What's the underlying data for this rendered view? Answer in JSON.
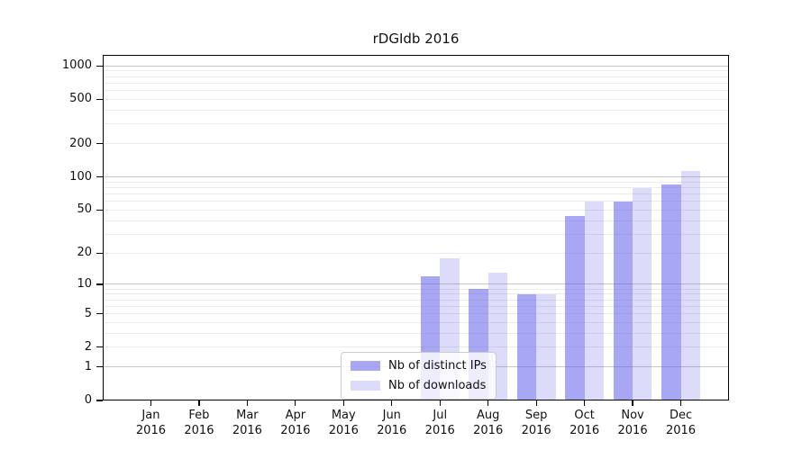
{
  "chart_data": {
    "type": "bar",
    "title": "rDGIdb 2016",
    "xlabel": "",
    "ylabel": "",
    "x_ticks": [
      {
        "month": "Jan",
        "year": "2016"
      },
      {
        "month": "Feb",
        "year": "2016"
      },
      {
        "month": "Mar",
        "year": "2016"
      },
      {
        "month": "Apr",
        "year": "2016"
      },
      {
        "month": "May",
        "year": "2016"
      },
      {
        "month": "Jun",
        "year": "2016"
      },
      {
        "month": "Jul",
        "year": "2016"
      },
      {
        "month": "Aug",
        "year": "2016"
      },
      {
        "month": "Sep",
        "year": "2016"
      },
      {
        "month": "Oct",
        "year": "2016"
      },
      {
        "month": "Nov",
        "year": "2016"
      },
      {
        "month": "Dec",
        "year": "2016"
      }
    ],
    "series": [
      {
        "name": "Nb of distinct IPs",
        "css_color": "rgba(88,88,232,0.53)",
        "color_hex": "#a6a6f3",
        "values": [
          0,
          0,
          0,
          0,
          0,
          0,
          12,
          9,
          8,
          44,
          60,
          85
        ]
      },
      {
        "name": "Nb of downloads",
        "css_color": "rgba(88,88,232,0.21)",
        "color_hex": "#dcdcfa",
        "values": [
          0,
          0,
          0,
          0,
          0,
          0,
          18,
          13,
          8,
          60,
          80,
          113
        ]
      }
    ],
    "y_axis": {
      "scale": "log1p",
      "ticks": [
        0,
        1,
        2,
        5,
        10,
        20,
        50,
        100,
        200,
        500,
        1000
      ],
      "max": 1255
    },
    "grid": {
      "major": [
        1,
        10,
        100,
        1000
      ],
      "minor": [
        2,
        3,
        4,
        5,
        6,
        7,
        8,
        9,
        20,
        30,
        40,
        50,
        60,
        70,
        80,
        90,
        200,
        300,
        400,
        500,
        600,
        700,
        800,
        900
      ],
      "major_color": "#c8c8c8",
      "minor_color": "#ebebeb"
    },
    "legend": {
      "position": "inside-bottom-center"
    },
    "colors": {
      "axis": "#000000",
      "text": "#111111",
      "background": "#ffffff"
    }
  }
}
